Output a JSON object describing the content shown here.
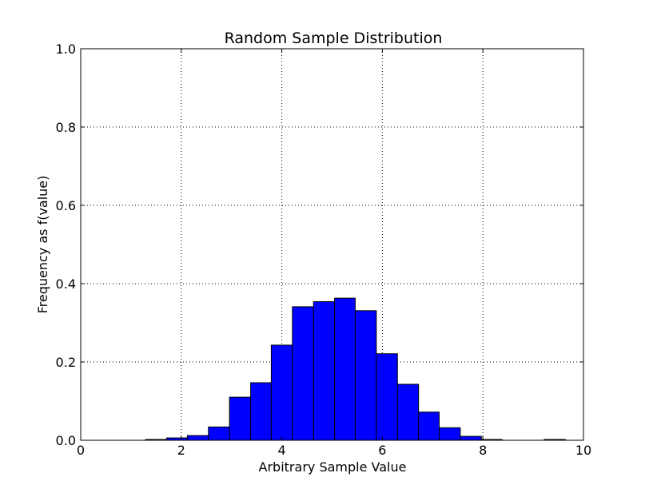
{
  "chart_data": {
    "type": "bar",
    "title": "Random Sample Distribution",
    "xlabel": "Arbitrary Sample Value",
    "ylabel": "Frequency as f(value)",
    "xlim": [
      0,
      10
    ],
    "ylim": [
      0,
      1.0
    ],
    "grid": true,
    "x_ticks": [
      "0",
      "2",
      "4",
      "6",
      "8",
      "10"
    ],
    "y_ticks": [
      "0.0",
      "0.2",
      "0.4",
      "0.6",
      "0.8",
      "1.0"
    ],
    "bar_color": "#0000ff",
    "bins": [
      {
        "x0": 1.29,
        "x1": 1.71,
        "value": 0.002
      },
      {
        "x0": 1.71,
        "x1": 2.12,
        "value": 0.006
      },
      {
        "x0": 2.12,
        "x1": 2.54,
        "value": 0.012
      },
      {
        "x0": 2.54,
        "x1": 2.96,
        "value": 0.034
      },
      {
        "x0": 2.96,
        "x1": 3.38,
        "value": 0.11
      },
      {
        "x0": 3.38,
        "x1": 3.79,
        "value": 0.147
      },
      {
        "x0": 3.79,
        "x1": 4.21,
        "value": 0.243
      },
      {
        "x0": 4.21,
        "x1": 4.63,
        "value": 0.341
      },
      {
        "x0": 4.63,
        "x1": 5.05,
        "value": 0.354
      },
      {
        "x0": 5.05,
        "x1": 5.46,
        "value": 0.363
      },
      {
        "x0": 5.46,
        "x1": 5.88,
        "value": 0.331
      },
      {
        "x0": 5.88,
        "x1": 6.3,
        "value": 0.221
      },
      {
        "x0": 6.3,
        "x1": 6.72,
        "value": 0.143
      },
      {
        "x0": 6.72,
        "x1": 7.13,
        "value": 0.072
      },
      {
        "x0": 7.13,
        "x1": 7.55,
        "value": 0.032
      },
      {
        "x0": 7.55,
        "x1": 7.97,
        "value": 0.01
      },
      {
        "x0": 7.97,
        "x1": 8.38,
        "value": 0.002
      },
      {
        "x0": 8.38,
        "x1": 8.8,
        "value": 0.0
      },
      {
        "x0": 8.8,
        "x1": 9.22,
        "value": 0.0
      },
      {
        "x0": 9.22,
        "x1": 9.64,
        "value": 0.002
      }
    ]
  }
}
